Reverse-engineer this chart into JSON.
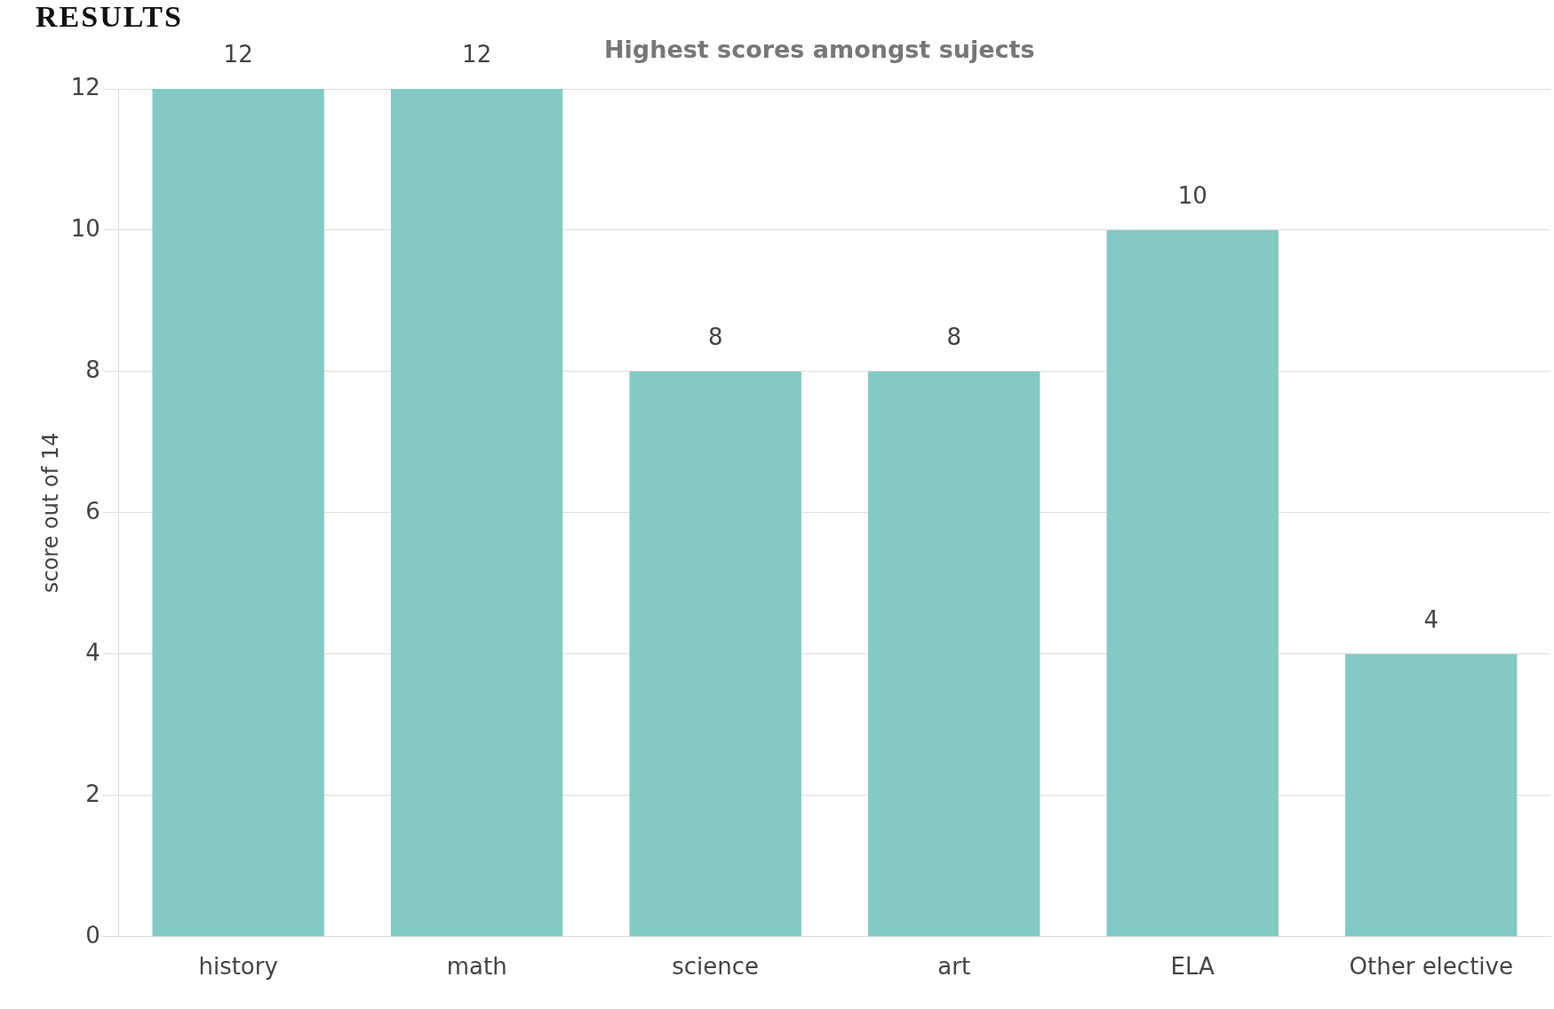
{
  "chart_data": {
    "type": "bar",
    "title": "RESULTS",
    "subtitle": "Highest scores amongst sujects",
    "ylabel": "score out of 14",
    "categories": [
      "history",
      "math",
      "science",
      "art",
      "ELA",
      "Other elective"
    ],
    "values": [
      12,
      12,
      8,
      8,
      10,
      4
    ],
    "color": "#82cac3",
    "ylim": [
      0,
      12
    ],
    "yticks": [
      0,
      2,
      4,
      6,
      8,
      10,
      12
    ],
    "grid": "y",
    "data_labels": true
  }
}
